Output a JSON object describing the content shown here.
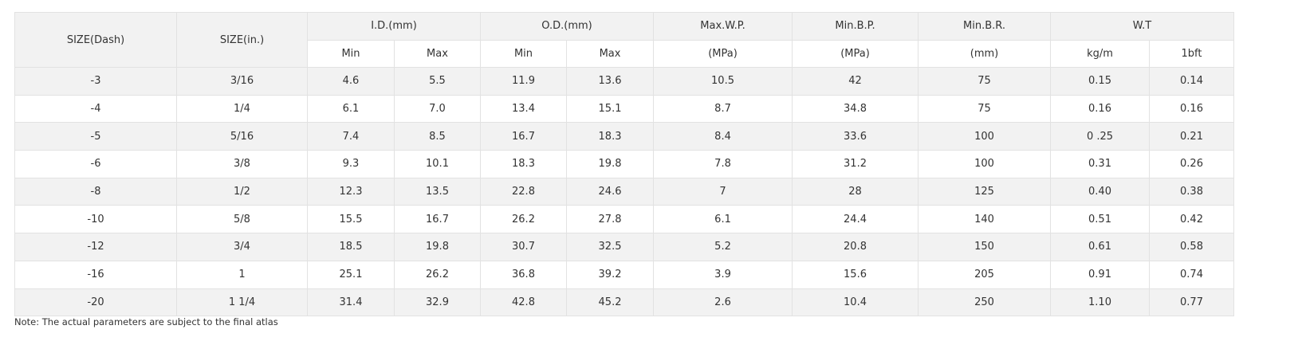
{
  "header": {
    "row1": [
      "SIZE(Dash)",
      "SIZE(in.)",
      "I.D.(mm)",
      "O.D.(mm)",
      "Max.W.P.",
      "Min.B.P.",
      "Min.B.R.",
      "W.T"
    ],
    "row2": [
      "Min",
      "Max",
      "Min",
      "Max",
      "(MPa)",
      "(MPa)",
      "(mm)",
      "kg/m",
      "1bft"
    ]
  },
  "table": {
    "rows": [
      [
        "-3",
        "3/16",
        "4.6",
        "5.5",
        "11.9",
        "13.6",
        "10.5",
        "42",
        "75",
        "0.15",
        "0.14"
      ],
      [
        "-4",
        "1/4",
        "6.1",
        "7.0",
        "13.4",
        "15.1",
        "8.7",
        "34.8",
        "75",
        "0.16",
        "0.16"
      ],
      [
        "-5",
        "5/16",
        "7.4",
        "8.5",
        "16.7",
        "18.3",
        "8.4",
        "33.6",
        "100",
        "0 .25",
        "0.21"
      ],
      [
        "-6",
        "3/8",
        "9.3",
        "10.1",
        "18.3",
        "19.8",
        "7.8",
        "31.2",
        "100",
        "0.31",
        "0.26"
      ],
      [
        "-8",
        "1/2",
        "12.3",
        "13.5",
        "22.8",
        "24.6",
        "7",
        "28",
        "125",
        "0.40",
        "0.38"
      ],
      [
        "-10",
        "5/8",
        "15.5",
        "16.7",
        "26.2",
        "27.8",
        "6.1",
        "24.4",
        "140",
        "0.51",
        "0.42"
      ],
      [
        "-12",
        "3/4",
        "18.5",
        "19.8",
        "30.7",
        "32.5",
        "5.2",
        "20.8",
        "150",
        "0.61",
        "0.58"
      ],
      [
        "-16",
        "1",
        "25.1",
        "26.2",
        "36.8",
        "39.2",
        "3.9",
        "15.6",
        "205",
        "0.91",
        "0.74"
      ],
      [
        "-20",
        "1 1/4",
        "31.4",
        "32.9",
        "42.8",
        "45.2",
        "2.6",
        "10.4",
        "250",
        "1.10",
        "0.77"
      ]
    ]
  },
  "note": "Note: The actual parameters are subject to the final atlas"
}
